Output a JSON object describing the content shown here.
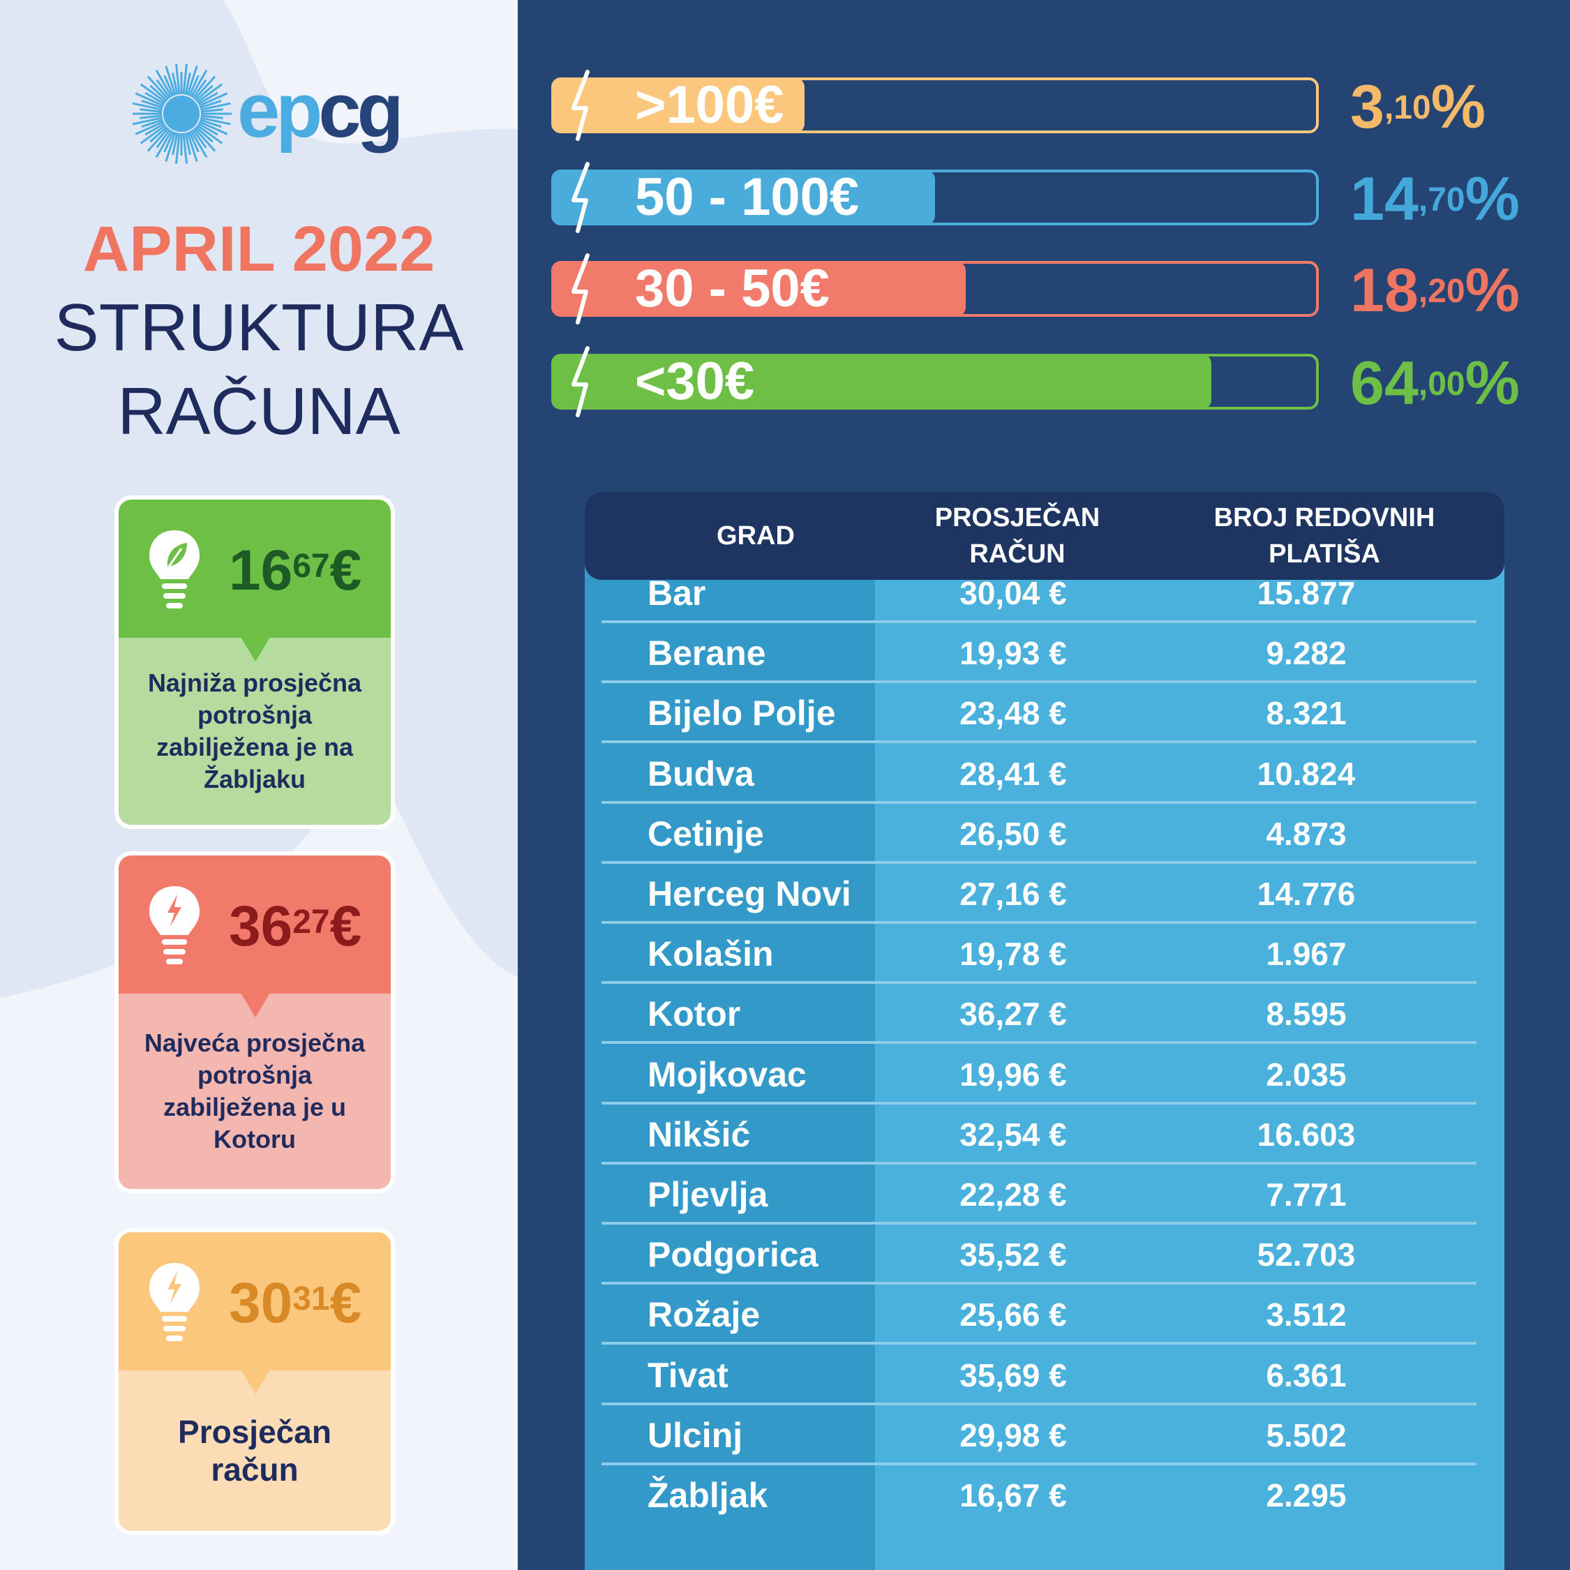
{
  "brand": {
    "logo_ep": "ep",
    "logo_cg": "cg"
  },
  "title": {
    "date": "APRIL 2022",
    "line1": "STRUKTURA",
    "line2": "RAČUNA"
  },
  "cards": [
    {
      "int": "16",
      "dec": "67",
      "currency": "€",
      "text": "Najniža prosječna potrošnja zabilježena je na Žabljaku",
      "icon": "leaf-bulb-icon"
    },
    {
      "int": "36",
      "dec": "27",
      "currency": "€",
      "text": "Najveća prosječna potrošnja zabilježena je u Kotoru",
      "icon": "bolt-bulb-icon"
    },
    {
      "int": "30",
      "dec": "31",
      "currency": "€",
      "text": "Prosječan račun",
      "icon": "bolt-bulb-icon"
    }
  ],
  "colors": {
    "orange": "#fbc77d",
    "blue": "#49acdb",
    "red": "#f27a6b",
    "green": "#6dbf45",
    "navy": "#244574"
  },
  "bars": [
    {
      "label": ">100€",
      "pct_int": "3",
      "pct_dec": ",10",
      "pct_sign": "%",
      "fill_fraction": 0.33,
      "color": "#fbc77d",
      "pct_color": "#f5b96a"
    },
    {
      "label": "50 - 100€",
      "pct_int": "14",
      "pct_dec": ",70",
      "pct_sign": "%",
      "fill_fraction": 0.5,
      "color": "#49acdb",
      "pct_color": "#45a8db"
    },
    {
      "label": "30 - 50€",
      "pct_int": "18",
      "pct_dec": ",20",
      "pct_sign": "%",
      "fill_fraction": 0.54,
      "color": "#f27a6b",
      "pct_color": "#ef7560"
    },
    {
      "label": "<30€",
      "pct_int": "64",
      "pct_dec": ",00",
      "pct_sign": "%",
      "fill_fraction": 0.86,
      "color": "#6dbf45",
      "pct_color": "#6dbf45"
    }
  ],
  "table": {
    "headers": [
      "GRAD",
      "PROSJEČAN RAČUN",
      "BROJ REDOVNIH PLATIŠA"
    ],
    "rows": [
      [
        "Bar",
        "30,04 €",
        "15.877"
      ],
      [
        "Berane",
        "19,93 €",
        "9.282"
      ],
      [
        "Bijelo Polje",
        "23,48 €",
        "8.321"
      ],
      [
        "Budva",
        "28,41 €",
        "10.824"
      ],
      [
        "Cetinje",
        "26,50 €",
        "4.873"
      ],
      [
        "Herceg Novi",
        "27,16 €",
        "14.776"
      ],
      [
        "Kolašin",
        "19,78 €",
        "1.967"
      ],
      [
        "Kotor",
        "36,27 €",
        "8.595"
      ],
      [
        "Mojkovac",
        "19,96 €",
        "2.035"
      ],
      [
        "Nikšić",
        "32,54 €",
        "16.603"
      ],
      [
        "Pljevlja",
        "22,28 €",
        "7.771"
      ],
      [
        "Podgorica",
        "35,52 €",
        "52.703"
      ],
      [
        "Rožaje",
        "25,66 €",
        "3.512"
      ],
      [
        "Tivat",
        "35,69 €",
        "6.361"
      ],
      [
        "Ulcinj",
        "29,98 €",
        "5.502"
      ],
      [
        "Žabljak",
        "16,67 €",
        "2.295"
      ]
    ]
  }
}
